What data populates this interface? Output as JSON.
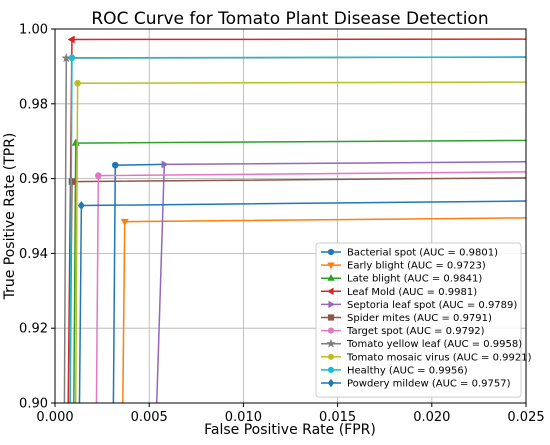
{
  "chart_data": {
    "type": "line",
    "title": "ROC Curve for Tomato Plant Disease Detection",
    "xlabel": "False Positive Rate (FPR)",
    "ylabel": "True Positive Rate (TPR)",
    "xlim": [
      0.0,
      0.025
    ],
    "ylim": [
      0.9,
      1.0
    ],
    "x_ticks": [
      "0.000",
      "0.005",
      "0.010",
      "0.015",
      "0.020",
      "0.025"
    ],
    "y_ticks": [
      "0.90",
      "0.92",
      "0.94",
      "0.96",
      "0.98",
      "1.00"
    ],
    "grid": true,
    "legend_position": "lower-right",
    "series": [
      {
        "name": "Bacterial spot (AUC = 0.9801)",
        "color": "#1f77b4",
        "marker": "circle",
        "points": [
          [
            0.0031,
            0.9
          ],
          [
            0.0032,
            0.9636
          ],
          [
            0.0058,
            0.9638
          ]
        ]
      },
      {
        "name": "Early blight (AUC = 0.9723)",
        "color": "#ff7f0e",
        "marker": "triangle-down",
        "points": [
          [
            0.0036,
            0.9
          ],
          [
            0.0037,
            0.9485
          ],
          [
            0.025,
            0.9495
          ]
        ]
      },
      {
        "name": "Late blight (AUC = 0.9841)",
        "color": "#2ca02c",
        "marker": "triangle-up",
        "points": [
          [
            0.001,
            0.9
          ],
          [
            0.0011,
            0.9695
          ],
          [
            0.025,
            0.9702
          ]
        ]
      },
      {
        "name": "Leaf Mold (AUC = 0.9981)",
        "color": "#d62728",
        "marker": "triangle-left",
        "points": [
          [
            0.0007,
            0.9
          ],
          [
            0.0009,
            0.9972
          ],
          [
            0.025,
            0.9973
          ]
        ]
      },
      {
        "name": "Septoria leaf spot (AUC = 0.9789)",
        "color": "#9467bd",
        "marker": "triangle-right",
        "points": [
          [
            0.0054,
            0.9
          ],
          [
            0.0058,
            0.9638
          ],
          [
            0.025,
            0.9645
          ]
        ]
      },
      {
        "name": "Spider mites (AUC = 0.9791)",
        "color": "#8c564b",
        "marker": "square",
        "points": [
          [
            0.0008,
            0.9
          ],
          [
            0.0009,
            0.9592
          ],
          [
            0.025,
            0.9602
          ]
        ]
      },
      {
        "name": "Target spot (AUC = 0.9792)",
        "color": "#e377c2",
        "marker": "circle",
        "points": [
          [
            0.0022,
            0.9
          ],
          [
            0.0023,
            0.9608
          ],
          [
            0.025,
            0.9618
          ]
        ]
      },
      {
        "name": "Tomato yellow leaf (AUC = 0.9958)",
        "color": "#7f7f7f",
        "marker": "star",
        "points": [
          [
            0.0005,
            0.9
          ],
          [
            0.0006,
            0.9922
          ],
          [
            0.025,
            0.9925
          ]
        ]
      },
      {
        "name": "Tomato mosaic virus (AUC = 0.9921)",
        "color": "#bcbd22",
        "marker": "circle",
        "points": [
          [
            0.0011,
            0.9
          ],
          [
            0.0012,
            0.9855
          ],
          [
            0.025,
            0.9858
          ]
        ]
      },
      {
        "name": "Healthy (AUC = 0.9956)",
        "color": "#17becf",
        "marker": "circle",
        "points": [
          [
            0.0008,
            0.9
          ],
          [
            0.0009,
            0.9923
          ],
          [
            0.025,
            0.9925
          ]
        ]
      },
      {
        "name": "Powdery mildew (AUC = 0.9757)",
        "color": "#1f78b4",
        "marker": "diamond",
        "points": [
          [
            0.0013,
            0.9
          ],
          [
            0.0014,
            0.9528
          ],
          [
            0.025,
            0.954
          ]
        ]
      }
    ]
  }
}
